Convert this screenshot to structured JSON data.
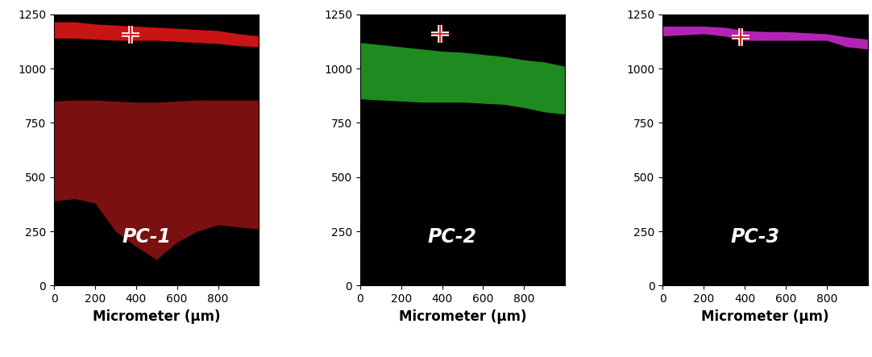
{
  "chart_data": [
    {
      "type": "area",
      "annotations": [
        {
          "text": "PC-1"
        }
      ],
      "x_label": "Micrometer (µm)",
      "xlim": [
        0,
        1000
      ],
      "xticks": [
        0,
        200,
        400,
        600,
        800
      ],
      "ylim": [
        0,
        1250
      ],
      "yticks": [
        0,
        250,
        500,
        750,
        1000,
        1250
      ],
      "marker_point": {
        "x": 375,
        "y": 1155,
        "marker": "cross",
        "color": "#e02020"
      },
      "series": [
        {
          "color": "#c81414",
          "x": [
            0,
            100,
            200,
            300,
            400,
            500,
            600,
            700,
            800,
            900,
            1000
          ],
          "y_bottom": [
            1140,
            1140,
            1135,
            1130,
            1130,
            1130,
            1125,
            1120,
            1115,
            1105,
            1100
          ],
          "y_top": [
            1215,
            1215,
            1205,
            1200,
            1195,
            1190,
            1185,
            1180,
            1175,
            1160,
            1150
          ]
        },
        {
          "color": "#7a1010",
          "x": [
            0,
            100,
            200,
            300,
            400,
            500,
            600,
            700,
            800,
            900,
            1000
          ],
          "y_bottom": [
            390,
            400,
            380,
            250,
            180,
            120,
            200,
            250,
            280,
            270,
            260
          ],
          "y_top": [
            850,
            855,
            855,
            850,
            845,
            845,
            850,
            855,
            855,
            855,
            855
          ]
        }
      ]
    },
    {
      "type": "area",
      "annotations": [
        {
          "text": "PC-2"
        }
      ],
      "x_label": "Micrometer (µm)",
      "xlim": [
        0,
        1000
      ],
      "xticks": [
        0,
        200,
        400,
        600,
        800
      ],
      "ylim": [
        0,
        1250
      ],
      "yticks": [
        0,
        250,
        500,
        750,
        1000,
        1250
      ],
      "marker_point": {
        "x": 390,
        "y": 1160,
        "marker": "cross",
        "color": "#e02020"
      },
      "series": [
        {
          "color": "#1f8a1f",
          "x": [
            0,
            100,
            200,
            300,
            400,
            500,
            600,
            700,
            800,
            900,
            1000
          ],
          "y_bottom": [
            860,
            855,
            850,
            845,
            845,
            845,
            840,
            835,
            820,
            800,
            790
          ],
          "y_top": [
            1120,
            1110,
            1100,
            1090,
            1080,
            1075,
            1065,
            1055,
            1040,
            1030,
            1010
          ]
        }
      ]
    },
    {
      "type": "area",
      "annotations": [
        {
          "text": "PC-3"
        }
      ],
      "x_label": "Micrometer (µm)",
      "xlim": [
        0,
        1000
      ],
      "xticks": [
        0,
        200,
        400,
        600,
        800
      ],
      "ylim": [
        0,
        1250
      ],
      "yticks": [
        0,
        250,
        500,
        750,
        1000,
        1250
      ],
      "marker_point": {
        "x": 380,
        "y": 1145,
        "marker": "cross",
        "color": "#e02020"
      },
      "series": [
        {
          "color": "#b424b4",
          "x": [
            0,
            100,
            200,
            300,
            400,
            500,
            600,
            700,
            800,
            900,
            1000
          ],
          "y_bottom": [
            1150,
            1155,
            1160,
            1150,
            1130,
            1130,
            1130,
            1130,
            1130,
            1100,
            1090
          ],
          "y_top": [
            1195,
            1195,
            1195,
            1190,
            1175,
            1170,
            1170,
            1165,
            1160,
            1145,
            1135
          ]
        }
      ]
    }
  ]
}
